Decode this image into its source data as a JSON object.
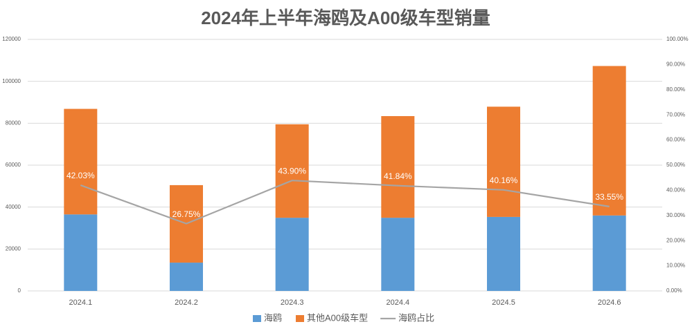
{
  "chart_data": {
    "type": "bar",
    "stacked": true,
    "title": "2024年上半年海鸥及A00级车型销量",
    "categories": [
      "2024.1",
      "2024.2",
      "2024.3",
      "2024.4",
      "2024.5",
      "2024.6"
    ],
    "series": [
      {
        "name": "海鸥",
        "color": "#5b9bd5",
        "values": [
          36500,
          13500,
          34900,
          34900,
          35300,
          36000
        ]
      },
      {
        "name": "其他A00级车型",
        "color": "#ed7d31",
        "values": [
          50350,
          36970,
          44600,
          48500,
          52600,
          71300
        ]
      },
      {
        "name": "海鸥占比",
        "color": "#a5a5a5",
        "type": "line",
        "axis": "y2",
        "values": [
          42.03,
          26.75,
          43.9,
          41.84,
          40.16,
          33.55
        ],
        "value_labels": [
          "42.03%",
          "26.75%",
          "43.90%",
          "41.84%",
          "40.16%",
          "33.55%"
        ]
      }
    ],
    "ylim": [
      0,
      120000
    ],
    "yticks": [
      0,
      20000,
      40000,
      60000,
      80000,
      100000,
      120000
    ],
    "y2lim": [
      0,
      100
    ],
    "y2ticks": [
      {
        "value": 0,
        "label": "0.00%"
      },
      {
        "value": 10,
        "label": "10.00%"
      },
      {
        "value": 20,
        "label": "20.00%"
      },
      {
        "value": 30,
        "label": "30.00%"
      },
      {
        "value": 40,
        "label": "40.00%"
      },
      {
        "value": 50,
        "label": "50.00%"
      },
      {
        "value": 60,
        "label": "60.00%"
      },
      {
        "value": 70,
        "label": "70.00%"
      },
      {
        "value": 80,
        "label": "80.00%"
      },
      {
        "value": 90,
        "label": "90.00%"
      },
      {
        "value": 100,
        "label": "100.00%"
      }
    ],
    "grid": true,
    "legend": "bottom"
  }
}
